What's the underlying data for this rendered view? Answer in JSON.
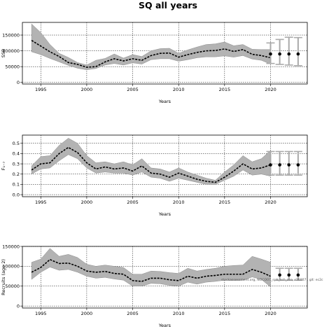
{
  "title": "SQ all years",
  "chart_data": [
    {
      "type": "line",
      "ylabel": "SSB",
      "xlabel": "Years",
      "xlim": [
        1993,
        2024
      ],
      "ylim": [
        -5000,
        190000
      ],
      "xticks": [
        1995,
        2000,
        2005,
        2010,
        2015,
        2020
      ],
      "yticks": [
        0,
        50000,
        100000,
        150000
      ],
      "grid": true,
      "x": [
        1994,
        1995,
        1996,
        1997,
        1998,
        1999,
        2000,
        2001,
        2002,
        2003,
        2004,
        2005,
        2006,
        2007,
        2008,
        2009,
        2010,
        2011,
        2012,
        2013,
        2014,
        2015,
        2016,
        2017,
        2018,
        2019,
        2020
      ],
      "series": [
        {
          "role": "estimate",
          "values": [
            133000,
            115000,
            97000,
            82000,
            63000,
            57000,
            48000,
            50000,
            65000,
            75000,
            68000,
            75000,
            70000,
            85000,
            92000,
            93000,
            80000,
            88000,
            95000,
            100000,
            101000,
            106000,
            98000,
            104000,
            89000,
            85000,
            78000
          ]
        },
        {
          "role": "upper",
          "values": [
            185000,
            158000,
            120000,
            92000,
            79000,
            63000,
            55000,
            70000,
            76000,
            90000,
            77000,
            88000,
            82000,
            100000,
            107000,
            108000,
            92000,
            103000,
            112000,
            120000,
            122000,
            128000,
            116000,
            120000,
            105000,
            104000,
            104000
          ]
        },
        {
          "role": "lower",
          "values": [
            97000,
            88000,
            76000,
            65000,
            54000,
            45000,
            40000,
            44000,
            55000,
            60000,
            55000,
            62000,
            58000,
            72000,
            75000,
            75000,
            67000,
            72000,
            78000,
            81000,
            81000,
            84000,
            80000,
            85000,
            74000,
            70000,
            58000
          ]
        }
      ],
      "projection": {
        "x": [
          2020,
          2021,
          2022,
          2023
        ],
        "median": [
          90000,
          90000,
          90000,
          90000
        ],
        "upper": [
          125000,
          136000,
          143000,
          142000
        ],
        "lower": [
          60000,
          57000,
          55000,
          53000
        ]
      }
    },
    {
      "type": "line",
      "ylabel": "F₁₋₇",
      "xlabel": "Years",
      "xlim": [
        1993,
        2024
      ],
      "ylim": [
        -0.02,
        0.58
      ],
      "xticks": [
        1995,
        2000,
        2005,
        2010,
        2015,
        2020
      ],
      "yticks": [
        0.0,
        0.1,
        0.2,
        0.3,
        0.4,
        0.5
      ],
      "ytick_labels": [
        "0.0",
        "0.1",
        "0.2",
        "0.3",
        "0.4",
        "0.5"
      ],
      "grid": true,
      "x": [
        1994,
        1995,
        1996,
        1997,
        1998,
        1999,
        2000,
        2001,
        2002,
        2003,
        2004,
        2005,
        2006,
        2007,
        2008,
        2009,
        2010,
        2011,
        2012,
        2013,
        2014,
        2015,
        2016,
        2017,
        2018,
        2019,
        2020
      ],
      "series": [
        {
          "role": "estimate",
          "values": [
            0.24,
            0.3,
            0.31,
            0.4,
            0.46,
            0.41,
            0.31,
            0.25,
            0.27,
            0.25,
            0.26,
            0.23,
            0.28,
            0.21,
            0.2,
            0.17,
            0.21,
            0.18,
            0.15,
            0.13,
            0.12,
            0.17,
            0.23,
            0.3,
            0.25,
            0.26,
            0.29
          ]
        },
        {
          "role": "upper",
          "values": [
            0.28,
            0.37,
            0.38,
            0.48,
            0.55,
            0.5,
            0.38,
            0.31,
            0.32,
            0.3,
            0.32,
            0.29,
            0.35,
            0.26,
            0.25,
            0.22,
            0.26,
            0.22,
            0.19,
            0.16,
            0.14,
            0.22,
            0.29,
            0.38,
            0.32,
            0.35,
            0.43
          ]
        },
        {
          "role": "lower",
          "values": [
            0.2,
            0.25,
            0.26,
            0.33,
            0.39,
            0.35,
            0.26,
            0.21,
            0.22,
            0.21,
            0.21,
            0.19,
            0.22,
            0.17,
            0.16,
            0.13,
            0.16,
            0.14,
            0.12,
            0.1,
            0.1,
            0.14,
            0.18,
            0.24,
            0.19,
            0.2,
            0.18
          ]
        }
      ],
      "projection": {
        "x": [
          2020,
          2021,
          2022,
          2023
        ],
        "median": [
          0.29,
          0.29,
          0.29,
          0.29
        ],
        "upper": [
          0.42,
          0.42,
          0.42,
          0.42
        ],
        "lower": [
          0.19,
          0.19,
          0.19,
          0.19
        ]
      }
    },
    {
      "type": "line",
      "ylabel": "Recruits (age 2)",
      "xlabel": "Years",
      "xlim": [
        1993,
        2024
      ],
      "ylim": [
        -5000,
        150000
      ],
      "xticks": [
        1995,
        2000,
        2005,
        2010,
        2015,
        2020
      ],
      "yticks": [
        0,
        50000,
        100000,
        150000
      ],
      "grid": true,
      "x": [
        1994,
        1995,
        1996,
        1997,
        1998,
        1999,
        2000,
        2001,
        2002,
        2003,
        2004,
        2005,
        2006,
        2007,
        2008,
        2009,
        2010,
        2011,
        2012,
        2013,
        2014,
        2015,
        2016,
        2017,
        2018,
        2019,
        2020
      ],
      "series": [
        {
          "role": "estimate",
          "values": [
            85000,
            97000,
            117000,
            107000,
            108000,
            100000,
            88000,
            85000,
            87000,
            82000,
            80000,
            64000,
            62000,
            70000,
            70000,
            66000,
            64000,
            75000,
            70000,
            75000,
            77000,
            80000,
            80000,
            80000,
            92000,
            85000,
            75000
          ]
        },
        {
          "role": "upper",
          "values": [
            110000,
            118000,
            145000,
            125000,
            130000,
            122000,
            105000,
            100000,
            103000,
            100000,
            97000,
            80000,
            80000,
            88000,
            87000,
            84000,
            82000,
            95000,
            88000,
            92000,
            95000,
            100000,
            102000,
            103000,
            125000,
            118000,
            110000
          ]
        },
        {
          "role": "lower",
          "values": [
            67000,
            85000,
            98000,
            90000,
            92000,
            85000,
            75000,
            70000,
            72000,
            68000,
            65000,
            50000,
            50000,
            57000,
            56000,
            52000,
            50000,
            60000,
            55000,
            60000,
            62000,
            65000,
            64000,
            65000,
            73000,
            67000,
            48000
          ]
        }
      ],
      "projection": {
        "x": [
          2021,
          2022,
          2023
        ],
        "median": [
          78000,
          78000,
          78000
        ],
        "upper": [
          95000,
          95000,
          95000
        ],
        "lower": [
          65000,
          65000,
          65000
        ]
      },
      "annotation": "stockassessment.org, NOCO07_sph_ssb_aco, r16007 , git: ec2c"
    }
  ]
}
